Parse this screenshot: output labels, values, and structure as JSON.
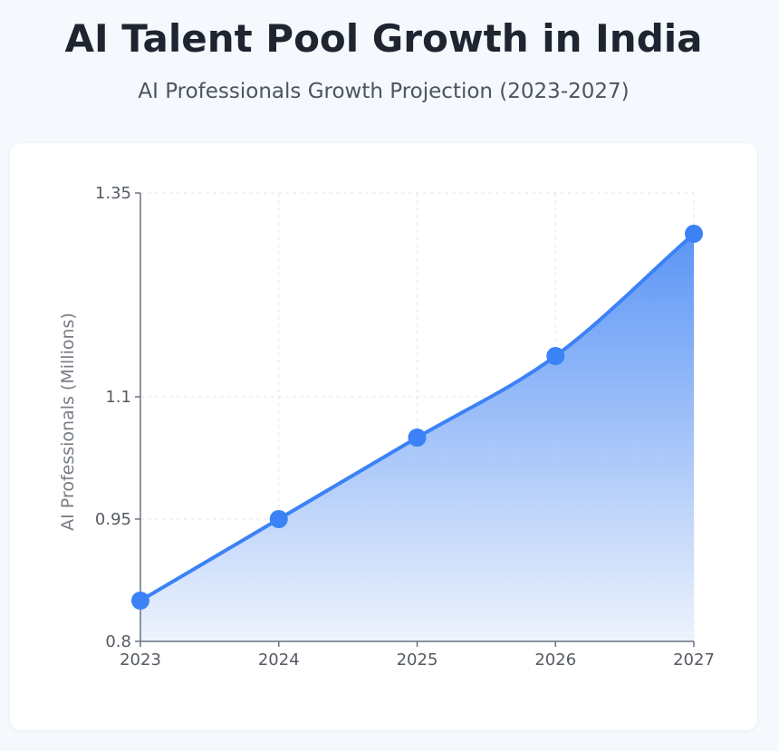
{
  "header": {
    "title": "AI Talent Pool Growth in India",
    "subtitle": "AI Professionals Growth Projection (2023-2027)"
  },
  "colors": {
    "line": "#3b82f6",
    "point": "#3b82f6",
    "area_top": "#5b95f5",
    "area_bottom": "#eef3fd",
    "grid": "#e5e7eb",
    "axis": "#6b7280"
  },
  "chart_data": {
    "type": "area",
    "title": "",
    "xlabel": "",
    "ylabel": "AI Professionals (Millions)",
    "categories": [
      "2023",
      "2024",
      "2025",
      "2026",
      "2027"
    ],
    "series": [
      {
        "values": [
          0.85,
          0.95,
          1.05,
          1.15,
          1.3
        ]
      }
    ],
    "ylim": [
      0.8,
      1.35
    ],
    "yticks": [
      0.8,
      0.95,
      1.1,
      1.35
    ],
    "ytick_labels": [
      "0.8",
      "0.95",
      "1.1",
      "1.35"
    ],
    "grid": true,
    "legend": "none",
    "smooth": true
  }
}
